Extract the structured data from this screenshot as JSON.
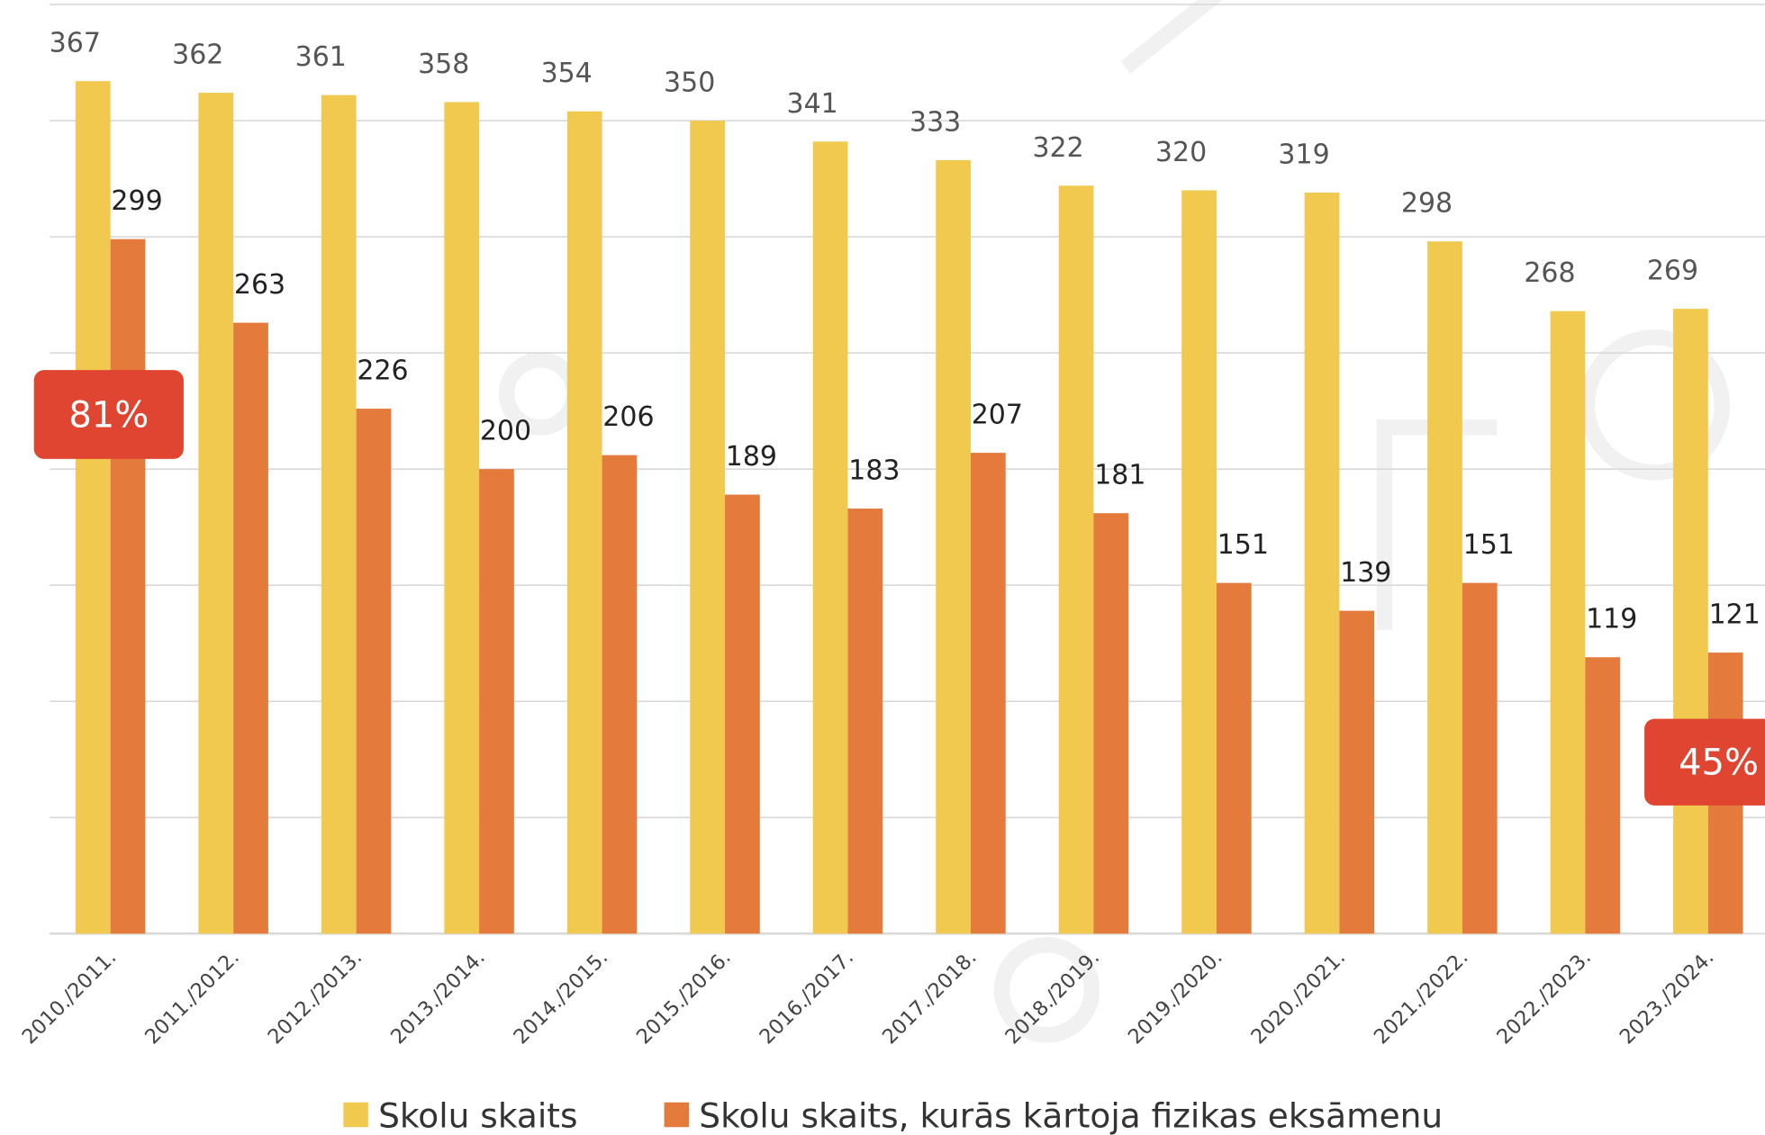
{
  "chart_data": {
    "type": "bar",
    "categories": [
      "2010./2011.",
      "2011./2012.",
      "2012./2013.",
      "2013./2014.",
      "2014./2015.",
      "2015./2016.",
      "2016./2017.",
      "2017./2018.",
      "2018./2019.",
      "2019./2020.",
      "2020./2021.",
      "2021./2022.",
      "2022./2023.",
      "2023./2024."
    ],
    "series": [
      {
        "name": "Skolu skaits",
        "color": "#f1c94e",
        "values": [
          367,
          362,
          361,
          358,
          354,
          350,
          341,
          333,
          322,
          320,
          319,
          298,
          268,
          269
        ]
      },
      {
        "name": "Skolu skaits, kurās kārtoja fizikas eksāmenu",
        "color": "#e47b3d",
        "values": [
          299,
          263,
          226,
          200,
          206,
          189,
          183,
          207,
          181,
          151,
          139,
          151,
          119,
          121
        ]
      }
    ],
    "ylim": [
      0,
      400
    ],
    "yticks": [
      0,
      50,
      100,
      150,
      200,
      250,
      300,
      350,
      400
    ],
    "grid": true,
    "annotations": [
      "81%",
      "45%"
    ]
  }
}
